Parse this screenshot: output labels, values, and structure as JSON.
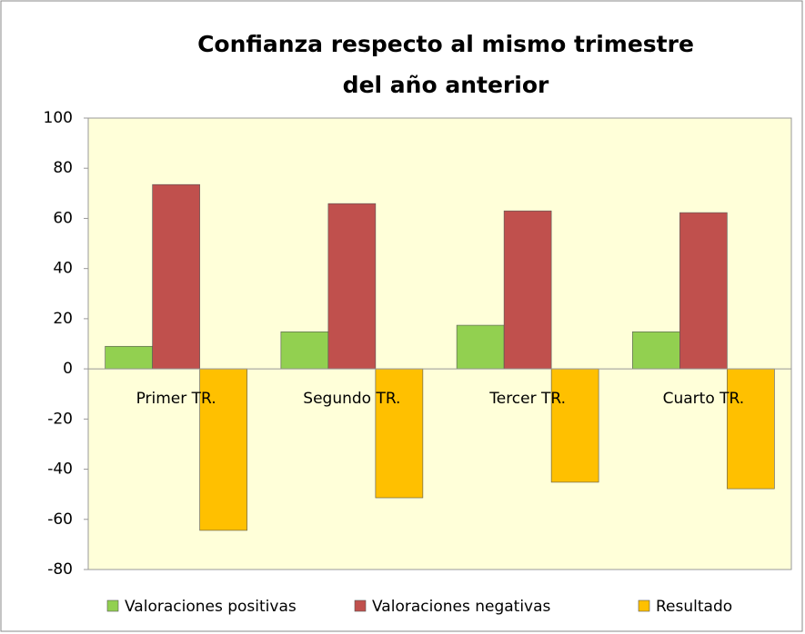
{
  "chart_data": {
    "type": "bar",
    "title": [
      "Confianza respecto al mismo trimestre",
      "del año anterior"
    ],
    "categories": [
      "Primer TR.",
      "Segundo TR.",
      "Tercer TR.",
      "Cuarto TR."
    ],
    "series": [
      {
        "name": "Valoraciones positivas",
        "color": "#92d050",
        "values": [
          9,
          14.8,
          17.4,
          14.8
        ]
      },
      {
        "name": "Valoraciones negativas",
        "color": "#c0504d",
        "values": [
          73.5,
          65.9,
          63,
          62.3
        ]
      },
      {
        "name": "Resultado",
        "color": "#ffc000",
        "values": [
          -64.4,
          -51.4,
          -45.2,
          -47.8
        ]
      }
    ],
    "ylim": [
      -80,
      100
    ],
    "yticks": [
      -80,
      -60,
      -40,
      -20,
      0,
      20,
      40,
      60,
      80,
      100
    ],
    "grid": false,
    "legend": "bottom"
  }
}
